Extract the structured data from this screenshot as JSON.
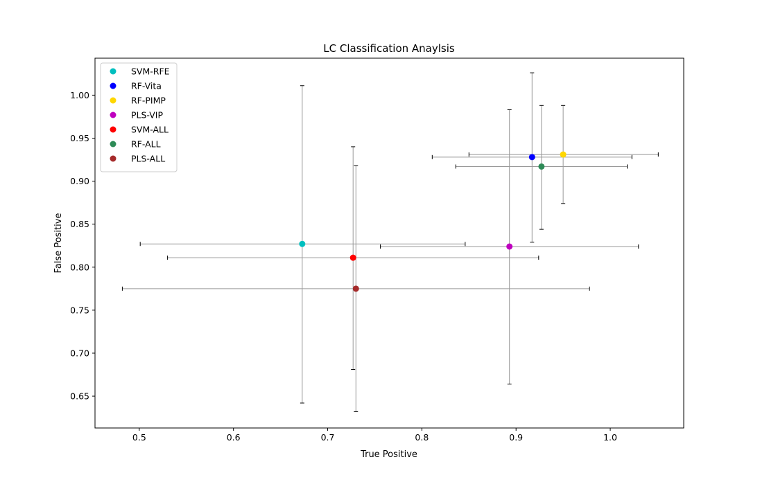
{
  "chart_data": {
    "type": "scatter",
    "title": "LC Classification Anaylsis",
    "xlabel": "True Positive",
    "ylabel": "False Positive",
    "xlim": [
      0.453,
      1.078
    ],
    "ylim": [
      0.613,
      1.043
    ],
    "xticks": [
      0.5,
      0.6,
      0.7,
      0.8,
      0.9,
      1.0
    ],
    "xtick_labels": [
      "0.5",
      "0.6",
      "0.7",
      "0.8",
      "0.9",
      "1.0"
    ],
    "yticks": [
      0.65,
      0.7,
      0.75,
      0.8,
      0.85,
      0.9,
      0.95,
      1.0
    ],
    "ytick_labels": [
      "0.65",
      "0.70",
      "0.75",
      "0.80",
      "0.85",
      "0.90",
      "0.95",
      "1.00"
    ],
    "grid": false,
    "legend_position": "top-left",
    "error_bar_color": "#999999",
    "series": [
      {
        "name": "SVM-RFE",
        "color": "#00bfbf",
        "x": 0.673,
        "y": 0.827,
        "xerr": [
          0.501,
          0.846
        ],
        "yerr": [
          0.642,
          1.011
        ]
      },
      {
        "name": "RF-Vita",
        "color": "#0000ff",
        "x": 0.917,
        "y": 0.928,
        "xerr": [
          0.811,
          1.023
        ],
        "yerr": [
          0.829,
          1.026
        ]
      },
      {
        "name": "RF-PIMP",
        "color": "#ffd700",
        "x": 0.95,
        "y": 0.931,
        "xerr": [
          0.85,
          1.051
        ],
        "yerr": [
          0.874,
          0.988
        ]
      },
      {
        "name": "PLS-VIP",
        "color": "#bf00bf",
        "x": 0.893,
        "y": 0.824,
        "xerr": [
          0.756,
          1.03
        ],
        "yerr": [
          0.664,
          0.983
        ]
      },
      {
        "name": "SVM-ALL",
        "color": "#ff0000",
        "x": 0.727,
        "y": 0.811,
        "xerr": [
          0.53,
          0.924
        ],
        "yerr": [
          0.681,
          0.94
        ]
      },
      {
        "name": "RF-ALL",
        "color": "#2e8b57",
        "x": 0.927,
        "y": 0.917,
        "xerr": [
          0.836,
          1.018
        ],
        "yerr": [
          0.844,
          0.988
        ]
      },
      {
        "name": "PLS-ALL",
        "color": "#a52a2a",
        "x": 0.73,
        "y": 0.775,
        "xerr": [
          0.482,
          0.978
        ],
        "yerr": [
          0.632,
          0.918
        ]
      }
    ]
  }
}
